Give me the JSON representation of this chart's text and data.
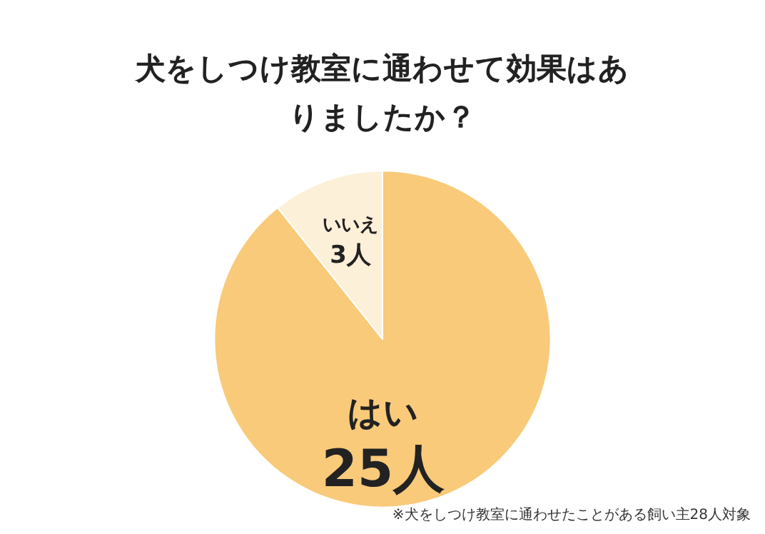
{
  "chart_data": {
    "type": "pie",
    "title": "犬をしつけ教室に通わせて効果はありましたか？",
    "categories": [
      "はい",
      "いいえ"
    ],
    "values": [
      25,
      3
    ],
    "colors": [
      "#f8ca7a",
      "#fdf0d9"
    ],
    "value_labels": [
      "25人",
      "3人"
    ],
    "annotations": [
      "※犬をしつけ教室に通わせたことがある飼い主28人対象"
    ]
  }
}
